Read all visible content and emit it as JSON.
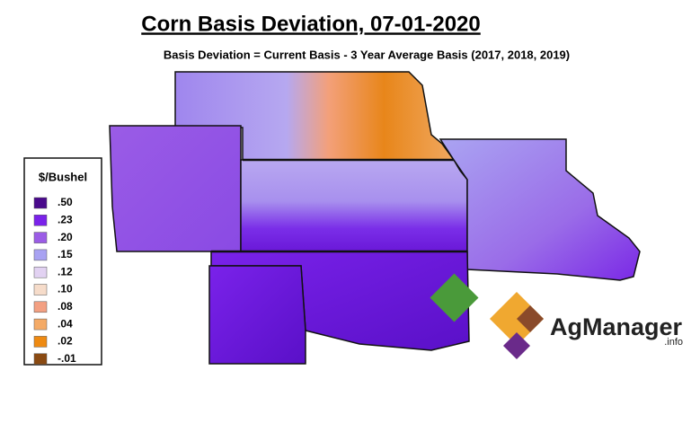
{
  "header": {
    "title": "Corn Basis Deviation, 07-01-2020",
    "subtitle": "Basis Deviation = Current Basis - 3 Year Average Basis (2017, 2018, 2019)"
  },
  "legend": {
    "title": "$/Bushel",
    "items": [
      {
        "label": ".50",
        "color": "#4a0a8c"
      },
      {
        "label": ".23",
        "color": "#7a22ea"
      },
      {
        "label": ".20",
        "color": "#9b5ce6"
      },
      {
        "label": ".15",
        "color": "#a8a2f2"
      },
      {
        "label": ".12",
        "color": "#e2d2f2"
      },
      {
        "label": ".10",
        "color": "#f6dcca"
      },
      {
        "label": ".08",
        "color": "#f3a082"
      },
      {
        "label": ".04",
        "color": "#f4aa66"
      },
      {
        "label": ".02",
        "color": "#ee8a12"
      },
      {
        "label": "-.01",
        "color": "#8a4a12"
      }
    ]
  },
  "logo": {
    "name": "AgManager",
    "suffix": ".info"
  }
}
